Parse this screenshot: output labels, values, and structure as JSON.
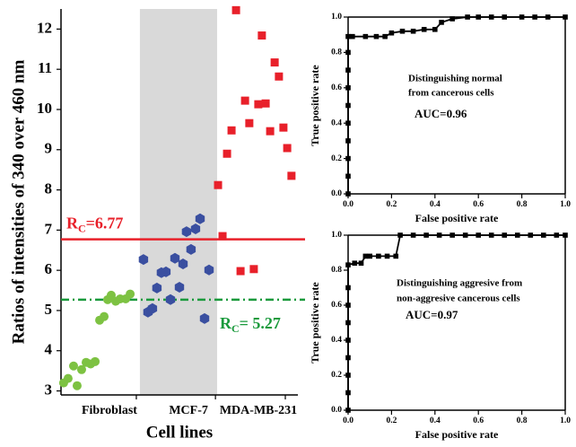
{
  "chart_data": [
    {
      "type": "scatter",
      "x_label": "Cell lines",
      "y_label": "Ratios of intensities of 340 over 460 nm",
      "xlim": [
        0,
        100
      ],
      "ylim": [
        2.9,
        12.5
      ],
      "xticks": [
        {
          "value": 31.8,
          "label": "Fibroblast"
        },
        {
          "value": 65.2,
          "label": "MCF-7"
        },
        {
          "value": 94.7,
          "label": "MDA-MB-231"
        }
      ],
      "yticks": [
        3,
        4,
        5,
        6,
        7,
        8,
        9,
        10,
        11,
        12
      ],
      "shaded_xrange": [
        33.3,
        65.9
      ],
      "shade_color": "#d9d9d9",
      "reference_lines": [
        {
          "value": 6.77,
          "color": "#e8202a",
          "style": "solid",
          "label_position": "left-above",
          "label": {
            "text": "R",
            "sub": "C",
            "suffix": "=6.77"
          }
        },
        {
          "value": 5.27,
          "color": "#1a9a3c",
          "style": "dash-dot",
          "label_position": "right-below",
          "label": {
            "text": "R",
            "sub": "C",
            "suffix": "= 5.27"
          }
        }
      ],
      "series": [
        {
          "marker": "circle",
          "color": "#7dc242",
          "x": [
            1.1,
            3.0,
            5.3,
            6.8,
            8.7,
            10.6,
            12.5,
            14.4,
            16.3,
            18.2,
            19.7,
            21.2,
            23.1,
            25.0,
            27.3,
            29.2
          ],
          "values": [
            3.2,
            3.31,
            3.62,
            3.13,
            3.53,
            3.71,
            3.67,
            3.73,
            4.76,
            4.85,
            5.27,
            5.38,
            5.23,
            5.29,
            5.29,
            5.41
          ]
        },
        {
          "marker": "hexagon",
          "color": "#3a4fa0",
          "x": [
            34.8,
            36.7,
            38.6,
            40.5,
            42.4,
            44.3,
            46.2,
            48.1,
            50.0,
            51.5,
            53.0,
            54.9,
            56.8,
            58.7,
            60.6,
            62.5
          ],
          "values": [
            6.27,
            4.96,
            5.05,
            5.56,
            5.94,
            5.96,
            5.27,
            6.3,
            5.58,
            6.16,
            6.96,
            6.52,
            7.03,
            7.28,
            4.8,
            6.01
          ]
        },
        {
          "marker": "square",
          "color": "#e8202a",
          "x": [
            66.3,
            68.2,
            70.1,
            72.0,
            73.9,
            75.8,
            77.7,
            79.5,
            81.4,
            83.3,
            84.8,
            86.4,
            88.3,
            90.2,
            92.0,
            93.9,
            95.5,
            97.3
          ],
          "values": [
            8.12,
            6.85,
            8.9,
            9.48,
            12.47,
            5.98,
            10.22,
            9.66,
            6.03,
            10.13,
            11.84,
            10.15,
            9.46,
            11.17,
            10.82,
            9.55,
            9.04,
            8.35
          ]
        }
      ]
    },
    {
      "type": "line",
      "x_label": "False positive rate",
      "y_label": "True positive rate",
      "xlim": [
        0,
        1
      ],
      "ylim": [
        0,
        1
      ],
      "xticks": [
        {
          "value": 0,
          "label": "0.0"
        },
        0.2,
        0.4,
        0.6,
        0.8,
        {
          "value": 1,
          "label": "1.0"
        }
      ],
      "yticks": [
        {
          "value": 0,
          "label": "0.0"
        },
        0.2,
        0.4,
        0.6,
        0.8,
        {
          "value": 1,
          "label": "1.0"
        }
      ],
      "color": "#000000",
      "marker": "square",
      "annotations": [
        "Distinguishing normal",
        "from cancerous cells",
        "AUC=0.96"
      ],
      "x": [
        0,
        0,
        0,
        0,
        0,
        0,
        0,
        0,
        0,
        0,
        0.02,
        0.08,
        0.13,
        0.17,
        0.2,
        0.25,
        0.3,
        0.35,
        0.4,
        0.43,
        0.48,
        0.55,
        0.6,
        0.66,
        0.72,
        0.8,
        0.86,
        0.92,
        1.0
      ],
      "values": [
        0,
        0.1,
        0.2,
        0.3,
        0.4,
        0.5,
        0.6,
        0.7,
        0.8,
        0.89,
        0.89,
        0.89,
        0.89,
        0.89,
        0.91,
        0.92,
        0.92,
        0.93,
        0.93,
        0.97,
        0.99,
        1,
        1,
        1,
        1,
        1,
        1,
        1,
        1
      ]
    },
    {
      "type": "line",
      "x_label": "False positive rate",
      "y_label": "True positive rate",
      "xlim": [
        0,
        1
      ],
      "ylim": [
        0,
        1
      ],
      "xticks": [
        {
          "value": 0,
          "label": "0.0"
        },
        0.2,
        0.4,
        0.6,
        0.8,
        {
          "value": 1,
          "label": "1.0"
        }
      ],
      "yticks": [
        {
          "value": 0,
          "label": "0.0"
        },
        0.2,
        0.4,
        0.6,
        0.8,
        {
          "value": 1,
          "label": "1.0"
        }
      ],
      "color": "#000000",
      "marker": "square",
      "annotations": [
        "Distinguishing aggresive from",
        "non-aggresive cancerous cells",
        "AUC=0.97"
      ],
      "x": [
        0,
        0,
        0,
        0,
        0,
        0,
        0,
        0,
        0,
        0.03,
        0.06,
        0.08,
        0.1,
        0.14,
        0.18,
        0.22,
        0.24,
        0.3,
        0.36,
        0.42,
        0.48,
        0.54,
        0.6,
        0.66,
        0.72,
        0.78,
        0.84,
        0.9,
        0.96,
        1.0
      ],
      "values": [
        0,
        0.1,
        0.2,
        0.3,
        0.4,
        0.5,
        0.6,
        0.7,
        0.83,
        0.84,
        0.84,
        0.88,
        0.88,
        0.88,
        0.88,
        0.88,
        1,
        1,
        1,
        1,
        1,
        1,
        1,
        1,
        1,
        1,
        1,
        1,
        1,
        1
      ]
    }
  ]
}
